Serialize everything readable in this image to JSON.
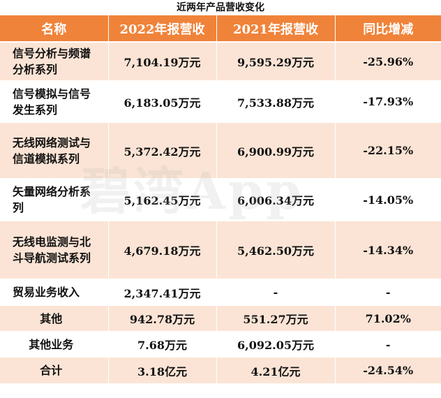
{
  "title": "近两年产品营收变化",
  "headers": [
    "名称",
    "2022年报营收",
    "2021年报营收",
    "同比增减"
  ],
  "rows": [
    {
      "name": "信号分析与频谱分析系列",
      "v2022": "7,104.19万元",
      "v2021": "9,595.29万元",
      "change": "-25.96%",
      "h": 56
    },
    {
      "name": "信号模拟与信号发生系列",
      "v2022": "6,183.05万元",
      "v2021": "7,533.88万元",
      "change": "-17.93%",
      "h": 59
    },
    {
      "name": "无线网络测试与信道模拟系列",
      "v2022": "5,372.42万元",
      "v2021": "6,900.99万元",
      "change": "-22.15%",
      "h": 81
    },
    {
      "name": "矢量网络分析系列",
      "v2022": "5,162.45万元",
      "v2021": "6,006.34万元",
      "change": "-14.05%",
      "h": 60
    },
    {
      "name": "无线电监测与北斗导航测试系列",
      "v2022": "4,679.18万元",
      "v2021": "5,462.50万元",
      "change": "-14.34%",
      "h": 84
    },
    {
      "name": "贸易业务收入",
      "v2022": "2,347.41万元",
      "v2021": "-",
      "change": "-",
      "h": 37
    },
    {
      "name": "其他",
      "v2022": "942.78万元",
      "v2021": "551.27万元",
      "change": "71.02%",
      "h": 38
    },
    {
      "name": "其他业务",
      "v2022": "7.68万元",
      "v2021": "6,092.05万元",
      "change": "-",
      "h": 36
    },
    {
      "name": "合计",
      "v2022": "3.18亿元",
      "v2021": "4.21亿元",
      "change": "-24.54%",
      "h": 38
    }
  ],
  "watermark": "碧湾App",
  "colors": {
    "header_bg": "#F0833A",
    "band": "#FBE4D5"
  }
}
